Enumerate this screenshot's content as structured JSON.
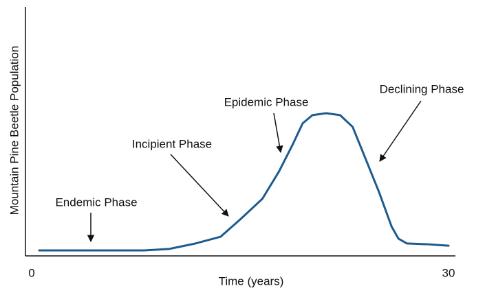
{
  "chart_data": {
    "type": "line",
    "xlabel": "Time (years)",
    "ylabel": "Mountain Pine Beetle Population",
    "x": [
      0.54,
      8.1,
      9.9,
      11.8,
      13.6,
      15.0,
      16.6,
      17.8,
      18.8,
      19.5,
      20.2,
      21.2,
      22.2,
      23.1,
      24.0,
      25.0,
      25.9,
      26.4,
      27.0,
      28.4,
      30.0
    ],
    "series": [
      {
        "color": "#1d5b8e",
        "values": [
          2.2,
          2.2,
          2.8,
          5.0,
          7.7,
          14.6,
          22.9,
          33.9,
          44.9,
          53.2,
          56.5,
          57.3,
          56.5,
          51.8,
          39.4,
          25.6,
          11.8,
          6.9,
          5.0,
          4.7,
          4.1
        ]
      }
    ],
    "xlim": [
      0,
      30
    ],
    "xticks": [
      0,
      30
    ],
    "ylim": [
      0,
      100
    ],
    "annotations": [
      "Endemic Phase",
      "Incipient Phase",
      "Epidemic Phase",
      "Declining Phase"
    ]
  }
}
